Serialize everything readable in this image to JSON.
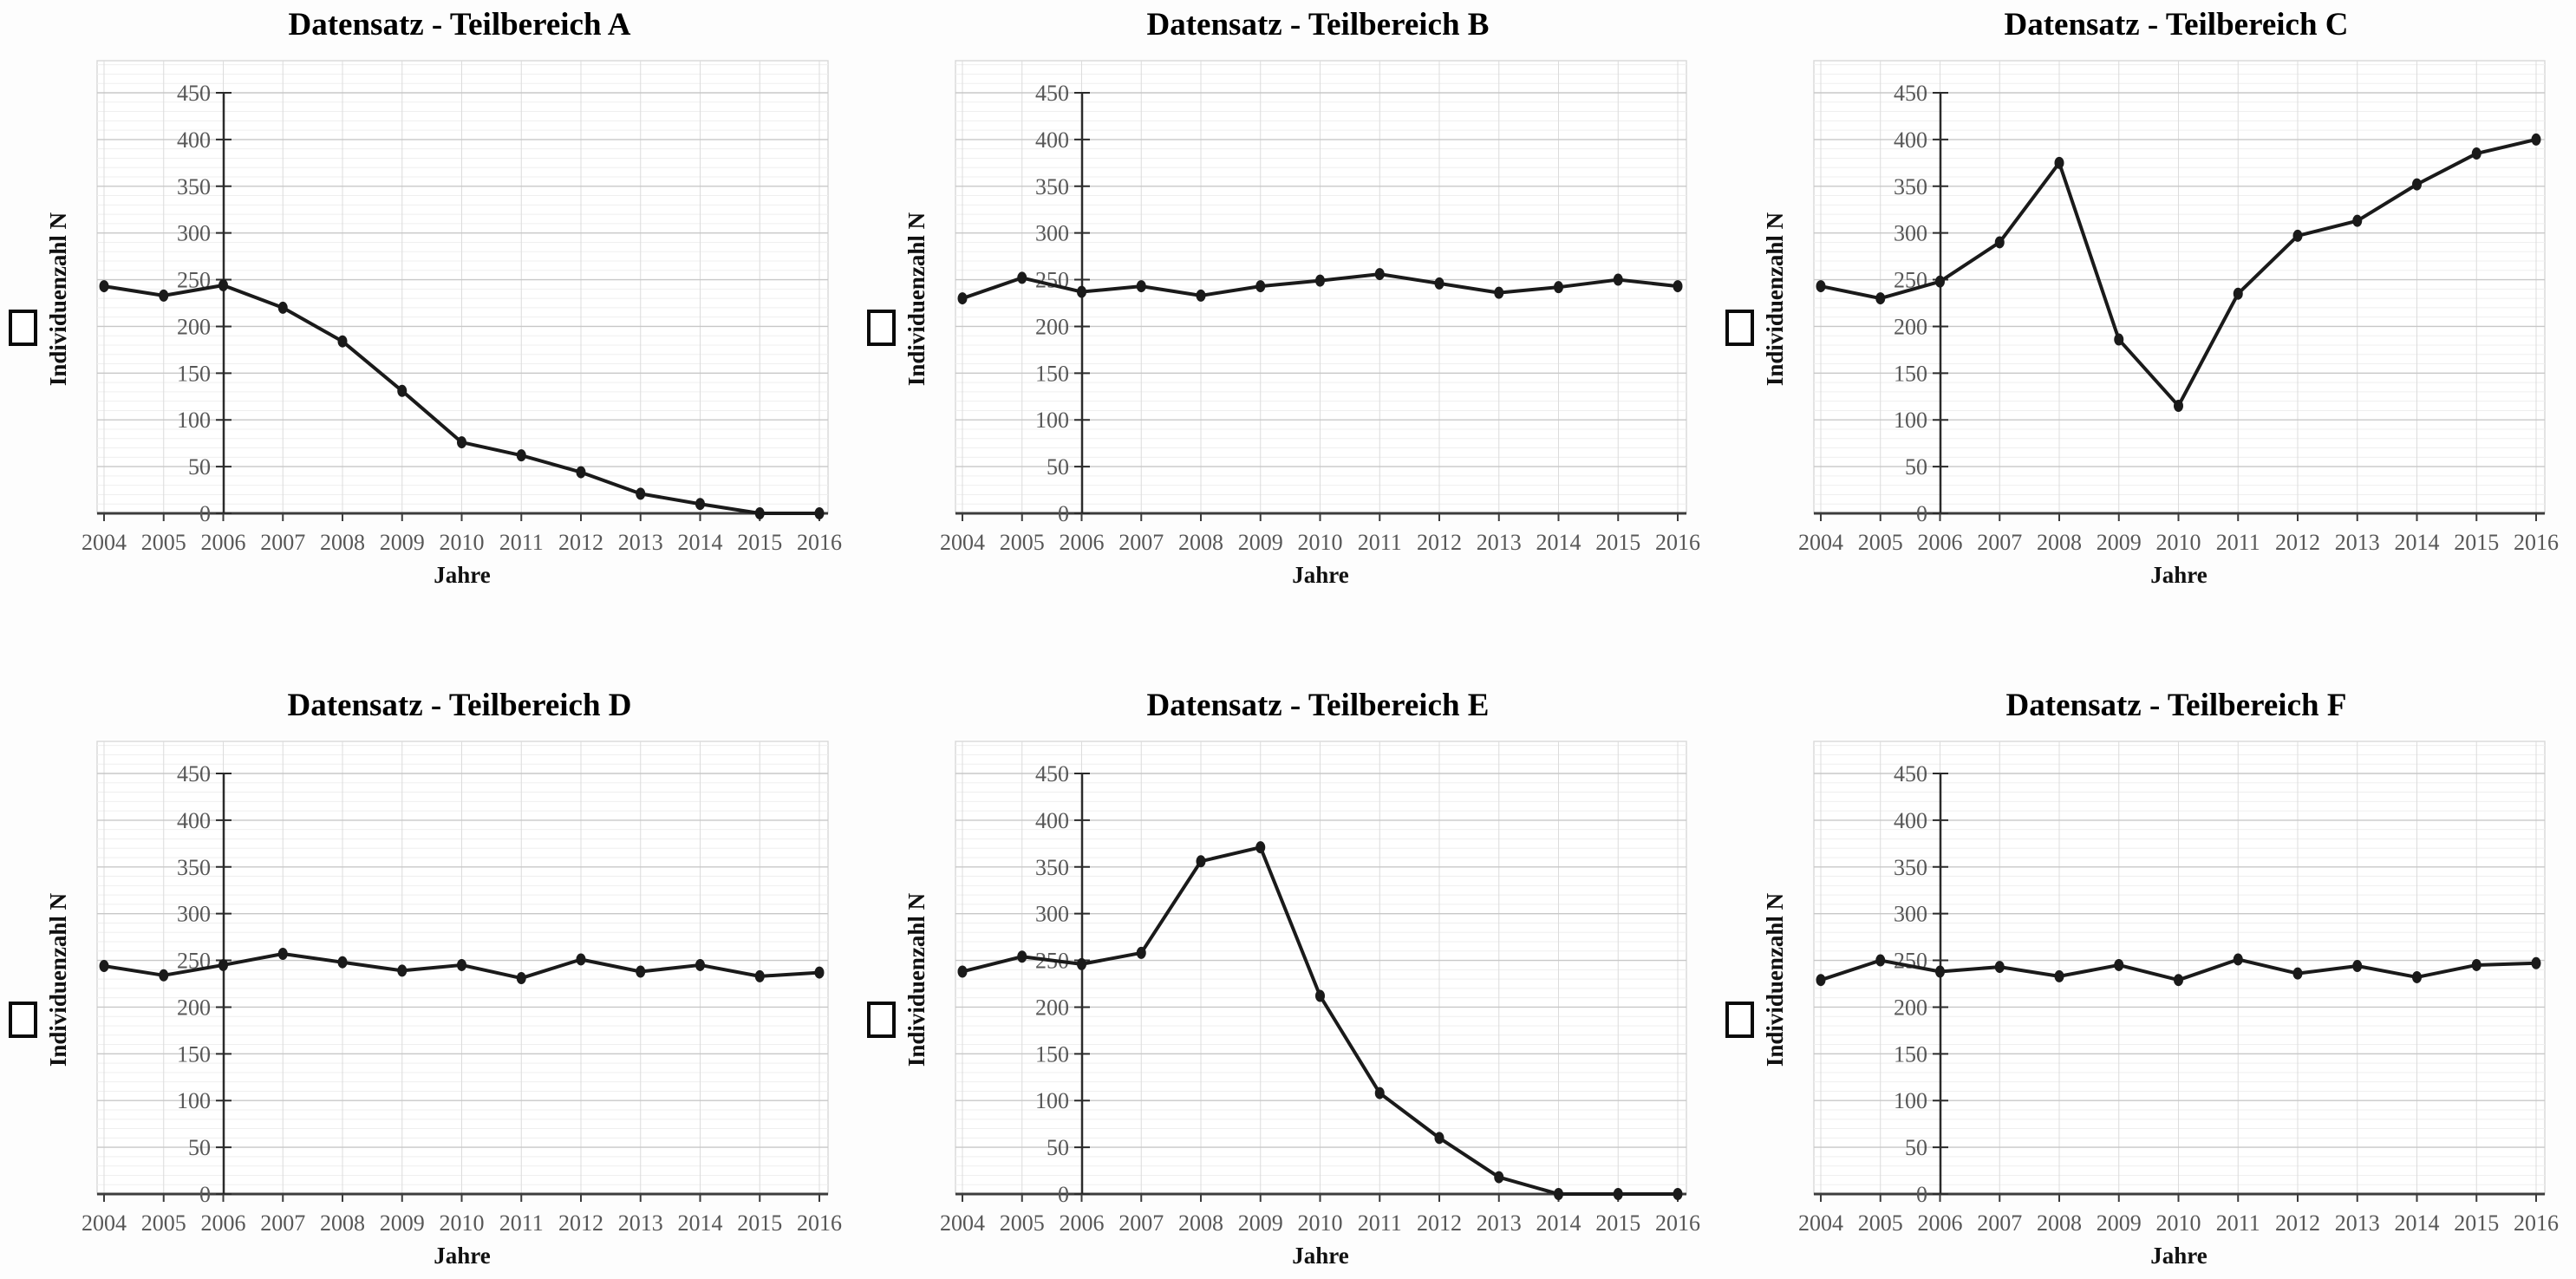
{
  "shared": {
    "y_ticks": [
      0,
      50,
      100,
      150,
      200,
      250,
      300,
      350,
      400,
      450
    ],
    "years": [
      2004,
      2005,
      2006,
      2007,
      2008,
      2009,
      2010,
      2011,
      2012,
      2013,
      2014,
      2015,
      2016
    ],
    "panel_side_glyph": "□",
    "colors": {
      "series_line": "#1a1a1a",
      "marker": "#1a1a1a",
      "tick_label": "#575757",
      "grid_major": "#c8c8c8",
      "grid_minor": "#efefef",
      "grid_vertical": "#dcdcdc",
      "axis_line": "#3c3c3c",
      "value_axis_line": "#2b2b2b",
      "plot_border": "#d8d8d8",
      "title_text": "#000000",
      "axis_title_text": "#111111",
      "background": "#fdfdfd"
    }
  },
  "chart_data": [
    {
      "panel": "A",
      "type": "line",
      "title": "Datensatz - Teilbereich A",
      "xlabel": "Jahre",
      "ylabel": "Individuenzahl N",
      "x": [
        2004,
        2005,
        2006,
        2007,
        2008,
        2009,
        2010,
        2011,
        2012,
        2013,
        2014,
        2015,
        2016
      ],
      "values": [
        243,
        233,
        244,
        220,
        184,
        131,
        76,
        62,
        44,
        21,
        10,
        0,
        0
      ],
      "ylim": [
        0,
        450
      ],
      "y_tick_step": 50,
      "value_axis_crosses_at": 2006,
      "grid": true,
      "legend": "none"
    },
    {
      "panel": "B",
      "type": "line",
      "title": "Datensatz - Teilbereich B",
      "xlabel": "Jahre",
      "ylabel": "Individuenzahl N",
      "x": [
        2004,
        2005,
        2006,
        2007,
        2008,
        2009,
        2010,
        2011,
        2012,
        2013,
        2014,
        2015,
        2016
      ],
      "values": [
        230,
        252,
        237,
        243,
        233,
        243,
        249,
        256,
        246,
        236,
        242,
        250,
        243
      ],
      "ylim": [
        0,
        450
      ],
      "y_tick_step": 50,
      "value_axis_crosses_at": 2006,
      "grid": true,
      "legend": "none"
    },
    {
      "panel": "C",
      "type": "line",
      "title": "Datensatz - Teilbereich C",
      "xlabel": "Jahre",
      "ylabel": "Individuenzahl N",
      "x": [
        2004,
        2005,
        2006,
        2007,
        2008,
        2009,
        2010,
        2011,
        2012,
        2013,
        2014,
        2015,
        2016
      ],
      "values": [
        243,
        230,
        248,
        290,
        375,
        186,
        115,
        235,
        297,
        313,
        352,
        385,
        400
      ],
      "ylim": [
        0,
        450
      ],
      "y_tick_step": 50,
      "value_axis_crosses_at": 2006,
      "grid": true,
      "legend": "none"
    },
    {
      "panel": "D",
      "type": "line",
      "title": "Datensatz - Teilbereich D",
      "xlabel": "Jahre",
      "ylabel": "Individuenzahl N",
      "x": [
        2004,
        2005,
        2006,
        2007,
        2008,
        2009,
        2010,
        2011,
        2012,
        2013,
        2014,
        2015,
        2016
      ],
      "values": [
        244,
        234,
        245,
        257,
        248,
        239,
        245,
        231,
        251,
        238,
        245,
        233,
        237
      ],
      "ylim": [
        0,
        450
      ],
      "y_tick_step": 50,
      "value_axis_crosses_at": 2006,
      "grid": true,
      "legend": "none"
    },
    {
      "panel": "E",
      "type": "line",
      "title": "Datensatz - Teilbereich E",
      "xlabel": "Jahre",
      "ylabel": "Individuenzahl N",
      "x": [
        2004,
        2005,
        2006,
        2007,
        2008,
        2009,
        2010,
        2011,
        2012,
        2013,
        2014,
        2015,
        2016
      ],
      "values": [
        238,
        254,
        246,
        258,
        356,
        371,
        212,
        108,
        60,
        18,
        0,
        0,
        0
      ],
      "ylim": [
        0,
        450
      ],
      "y_tick_step": 50,
      "value_axis_crosses_at": 2006,
      "grid": true,
      "legend": "none"
    },
    {
      "panel": "F",
      "type": "line",
      "title": "Datensatz - Teilbereich F",
      "xlabel": "Jahre",
      "ylabel": "Individuenzahl N",
      "x": [
        2004,
        2005,
        2006,
        2007,
        2008,
        2009,
        2010,
        2011,
        2012,
        2013,
        2014,
        2015,
        2016
      ],
      "values": [
        229,
        250,
        238,
        243,
        233,
        245,
        229,
        251,
        236,
        244,
        232,
        245,
        247
      ],
      "ylim": [
        0,
        450
      ],
      "y_tick_step": 50,
      "value_axis_crosses_at": 2006,
      "grid": true,
      "legend": "none"
    }
  ]
}
